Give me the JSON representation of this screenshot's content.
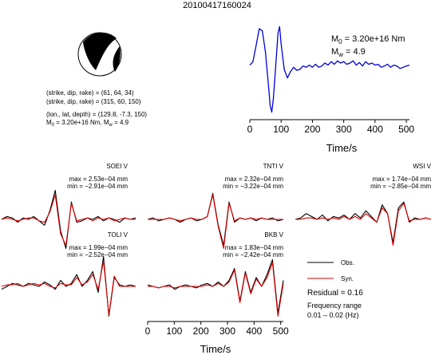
{
  "title": "20100417160024",
  "focal_mechanism": {
    "planes": [
      "(strike, dip, rake) = (61, 64, 34)",
      "(strike, dip, rake) = (315, 60, 150)"
    ],
    "location": "(lon., lat, depth) = (129.8, -7.3, 150)",
    "moment_line": "M0 = 3.20e+16 Nm, Mw = 4.9",
    "moment_line_parts": {
      "m0_sym": "M",
      "m0_sub": "0",
      "m0_val": " = 3.20e+16 Nm, M",
      "mw_sub": "w",
      "mw_val": " = 4.9"
    },
    "colors": {
      "compression": "#000000",
      "dilatation": "#ffffff"
    }
  },
  "source_time_function": {
    "m0_label": {
      "sym": "M",
      "sub": "0",
      "val": " = 3.20e+16 Nm"
    },
    "mw_label": {
      "sym": "M",
      "sub": "w",
      "val": " = 4.9"
    },
    "color": "#0000dd"
  },
  "legend": {
    "obs_label": "Obs.",
    "syn_label": "Syn.",
    "obs_color": "#000000",
    "syn_color": "#dd0000",
    "residual": "Residual = 0.16",
    "freq_label": "Frequency range",
    "freq_value": "0.01 – 0.02 (Hz)"
  },
  "chart_data": [
    {
      "type": "line",
      "name": "moment-rate-function",
      "xlabel": "Time/s",
      "ylabel": "",
      "xlim": [
        0,
        510
      ],
      "ylim": [
        -1.1,
        1.1
      ],
      "xticks": [
        0,
        100,
        200,
        300,
        400,
        500
      ],
      "x": [
        0,
        10,
        20,
        30,
        40,
        50,
        60,
        65,
        70,
        75,
        80,
        90,
        95,
        100,
        110,
        120,
        130,
        140,
        150,
        160,
        170,
        180,
        190,
        200,
        210,
        220,
        230,
        240,
        250,
        260,
        270,
        280,
        290,
        300,
        310,
        320,
        330,
        340,
        350,
        360,
        370,
        380,
        390,
        400,
        410,
        420,
        430,
        440,
        450,
        460,
        470,
        480,
        490,
        500,
        510
      ],
      "series": [
        {
          "values": [
            0.1,
            0.18,
            0.55,
            0.95,
            0.9,
            0.4,
            -0.4,
            -0.85,
            -1.0,
            -0.7,
            -0.2,
            0.85,
            1.0,
            0.6,
            0.0,
            -0.2,
            -0.05,
            0.05,
            -0.02,
            0.0,
            0.08,
            0.05,
            0.1,
            0.05,
            0.12,
            0.05,
            0.08,
            0.15,
            0.1,
            0.18,
            0.12,
            0.2,
            0.15,
            0.18,
            0.12,
            0.15,
            0.2,
            0.1,
            0.16,
            0.08,
            0.18,
            0.12,
            0.15,
            0.1,
            0.12,
            0.05,
            0.08,
            0.12,
            0.05,
            0.1,
            0.08,
            0.02,
            0.05,
            0.08,
            0.1
          ]
        }
      ]
    },
    {
      "type": "line",
      "name": "SOEI V",
      "max_label": "max = 2.53e−04 mm",
      "min_label": "min = −2.91e−04 mm",
      "x": [
        0,
        20,
        40,
        60,
        80,
        100,
        120,
        140,
        160,
        180,
        200,
        220,
        240,
        260,
        280,
        300,
        320,
        340,
        360,
        380,
        400,
        420,
        440,
        460,
        480,
        500
      ],
      "series": [
        {
          "name": "Obs.",
          "values": [
            0.0,
            0.1,
            0.05,
            -0.1,
            0.05,
            0.0,
            0.1,
            -0.05,
            -0.2,
            0.3,
            1.0,
            -0.4,
            -1.0,
            0.6,
            -0.1,
            -0.05,
            0.05,
            0.0,
            0.1,
            -0.05,
            0.05,
            0.0,
            -0.1,
            0.05,
            0.0,
            0.05
          ]
        },
        {
          "name": "Syn.",
          "values": [
            0.0,
            0.05,
            0.0,
            -0.05,
            0.0,
            0.05,
            0.05,
            -0.05,
            -0.1,
            0.25,
            0.85,
            -0.5,
            -0.9,
            0.55,
            -0.05,
            0.0,
            0.05,
            -0.05,
            0.05,
            0.0,
            0.05,
            -0.05,
            0.0,
            0.05,
            0.0,
            0.0
          ]
        }
      ]
    },
    {
      "type": "line",
      "name": "TNTI V",
      "max_label": "max = 2.32e−04 mm",
      "min_label": "min = −3.22e−04 mm",
      "x": [
        0,
        20,
        40,
        60,
        80,
        100,
        120,
        140,
        160,
        180,
        200,
        220,
        240,
        260,
        280,
        300,
        320,
        340,
        360,
        380,
        400,
        420,
        440,
        460,
        480,
        500
      ],
      "series": [
        {
          "name": "Obs.",
          "values": [
            0.0,
            0.05,
            -0.05,
            0.0,
            0.05,
            0.0,
            -0.1,
            0.0,
            0.05,
            -0.05,
            0.0,
            0.1,
            0.9,
            -0.2,
            -0.9,
            0.6,
            -0.1,
            0.05,
            0.0,
            0.05,
            -0.05,
            0.05,
            0.0,
            0.05,
            -0.05,
            0.0
          ]
        },
        {
          "name": "Syn.",
          "values": [
            0.0,
            0.0,
            0.0,
            0.0,
            0.05,
            0.0,
            -0.05,
            0.0,
            0.05,
            0.0,
            0.0,
            0.1,
            0.85,
            -0.25,
            -1.0,
            0.55,
            -0.05,
            0.05,
            0.0,
            0.05,
            0.0,
            0.05,
            0.0,
            0.0,
            0.0,
            0.0
          ]
        }
      ]
    },
    {
      "type": "line",
      "name": "WSI V",
      "max_label": "max = 1.74e−04 mm",
      "min_label": "min = −2.85e−04 mm",
      "x": [
        0,
        20,
        40,
        60,
        80,
        100,
        120,
        140,
        160,
        180,
        200,
        220,
        240,
        260,
        280,
        300,
        320,
        340,
        360,
        380,
        400,
        420,
        440,
        460,
        480,
        500
      ],
      "series": [
        {
          "name": "Obs.",
          "values": [
            0.0,
            0.05,
            0.2,
            0.1,
            0.0,
            0.15,
            -0.05,
            0.1,
            0.05,
            0.15,
            0.0,
            0.2,
            0.05,
            0.3,
            0.1,
            -0.1,
            0.5,
            0.2,
            -0.8,
            0.4,
            0.6,
            -0.1,
            0.05,
            0.0,
            0.05,
            0.0
          ]
        },
        {
          "name": "Syn.",
          "values": [
            0.0,
            0.0,
            0.05,
            0.05,
            0.0,
            0.05,
            0.0,
            0.05,
            0.0,
            0.1,
            0.0,
            0.1,
            0.0,
            0.2,
            0.05,
            -0.1,
            0.4,
            0.2,
            -0.9,
            0.3,
            0.55,
            -0.05,
            0.0,
            0.0,
            0.05,
            0.0
          ]
        }
      ]
    },
    {
      "type": "line",
      "name": "TOLI V",
      "max_label": "max = 1.99e−04 mm",
      "min_label": "min = −2.52e−04 mm",
      "x": [
        0,
        20,
        40,
        60,
        80,
        100,
        120,
        140,
        160,
        180,
        200,
        220,
        240,
        260,
        280,
        300,
        320,
        340,
        360,
        380,
        400,
        420,
        440,
        460,
        480,
        500
      ],
      "series": [
        {
          "name": "Obs.",
          "values": [
            -0.1,
            0.0,
            0.1,
            0.05,
            0.0,
            0.1,
            0.05,
            0.0,
            0.15,
            0.05,
            -0.1,
            0.2,
            0.0,
            0.1,
            0.4,
            0.0,
            0.2,
            0.5,
            -0.2,
            1.0,
            -1.0,
            0.3,
            0.05,
            0.0,
            0.05,
            0.0
          ]
        },
        {
          "name": "Syn.",
          "values": [
            0.0,
            0.05,
            0.05,
            0.1,
            0.0,
            0.05,
            0.1,
            0.05,
            0.1,
            0.0,
            -0.05,
            0.1,
            0.05,
            0.05,
            0.3,
            0.05,
            0.15,
            0.4,
            -0.1,
            0.85,
            -0.95,
            0.35,
            0.0,
            0.0,
            0.0,
            0.0
          ]
        }
      ]
    },
    {
      "type": "line",
      "name": "BKB V",
      "max_label": "max = 1.83e−04 mm",
      "min_label": "min = −2.42e−04 mm",
      "xlabel": "Time/s",
      "xlim": [
        0,
        510
      ],
      "xticks": [
        0,
        100,
        200,
        300,
        400,
        500
      ],
      "x": [
        0,
        20,
        40,
        60,
        80,
        100,
        120,
        140,
        160,
        180,
        200,
        220,
        240,
        260,
        280,
        300,
        320,
        340,
        360,
        380,
        400,
        420,
        440,
        460,
        480,
        500
      ],
      "series": [
        {
          "name": "Obs.",
          "values": [
            0.05,
            0.0,
            -0.05,
            0.0,
            0.05,
            -0.1,
            0.0,
            0.05,
            0.0,
            -0.05,
            0.05,
            0.1,
            0.0,
            0.15,
            0.0,
            0.2,
            0.6,
            -0.5,
            0.5,
            -0.2,
            0.3,
            0.0,
            0.4,
            0.9,
            -0.9,
            0.2
          ]
        },
        {
          "name": "Syn.",
          "values": [
            0.0,
            0.0,
            -0.05,
            0.0,
            0.0,
            -0.05,
            0.0,
            0.0,
            0.0,
            0.0,
            0.0,
            0.05,
            0.0,
            0.1,
            0.0,
            0.15,
            0.55,
            -0.55,
            0.45,
            -0.25,
            0.25,
            0.0,
            0.3,
            0.8,
            -1.0,
            0.1
          ]
        }
      ]
    }
  ]
}
